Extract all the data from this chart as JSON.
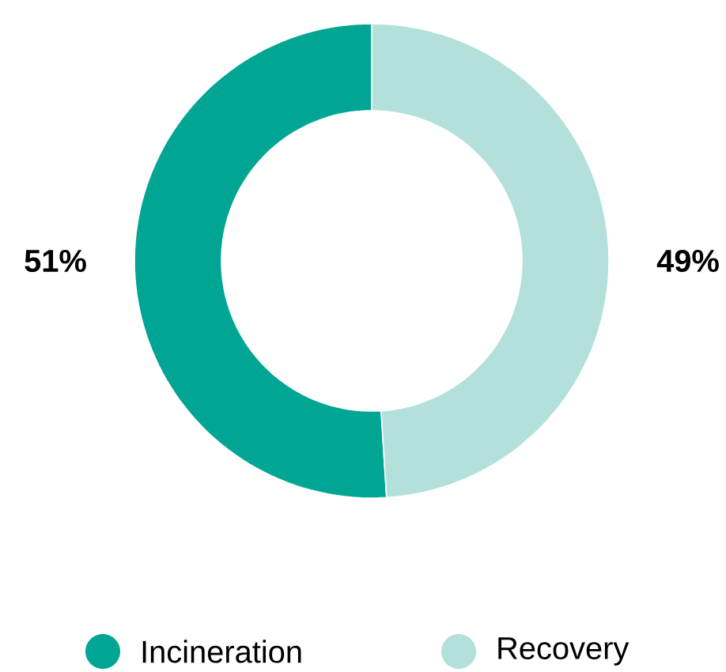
{
  "chart_data": {
    "type": "donut",
    "categories": [
      "Incineration",
      "Recovery"
    ],
    "values": [
      51,
      49
    ],
    "colors": [
      "#00a693",
      "#b3e0da"
    ],
    "value_labels": [
      "51%",
      "49%"
    ],
    "legend": "bottom"
  }
}
